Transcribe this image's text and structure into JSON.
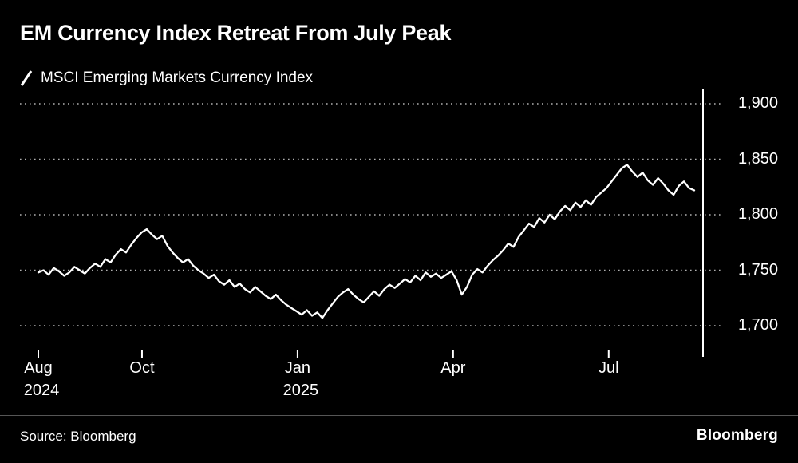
{
  "header": {
    "title": "EM Currency Index Retreat From July Peak",
    "legend": "MSCI Emerging Markets Currency Index"
  },
  "footer": {
    "source": "Source: Bloomberg",
    "brand": "Bloomberg"
  },
  "chart_data": {
    "type": "line",
    "title": "EM Currency Index Retreat From July Peak",
    "series_name": "MSCI Emerging Markets Currency Index",
    "x_unit": "months since Aug 2024",
    "x_range": [
      0,
      12.65
    ],
    "ylim": [
      1700,
      1900
    ],
    "grid": "dotted horizontal",
    "legend_position": "top-left",
    "colors": {
      "background": "#000000",
      "line": "#ffffff",
      "grid_dots": "#b0b0b0",
      "axis": "#ffffff",
      "text": "#ffffff"
    },
    "yticks": [
      {
        "value": 1900,
        "label": "1,900"
      },
      {
        "value": 1850,
        "label": "1,850"
      },
      {
        "value": 1800,
        "label": "1,800"
      },
      {
        "value": 1750,
        "label": "1,750"
      },
      {
        "value": 1700,
        "label": "1,700"
      }
    ],
    "xticks": [
      {
        "t": 0,
        "label": "Aug",
        "sublabel": "2024"
      },
      {
        "t": 2,
        "label": "Oct",
        "sublabel": ""
      },
      {
        "t": 5,
        "label": "Jan",
        "sublabel": "2025"
      },
      {
        "t": 8,
        "label": "Apr",
        "sublabel": ""
      },
      {
        "t": 11,
        "label": "Jul",
        "sublabel": ""
      }
    ],
    "values": [
      1748,
      1750,
      1746,
      1752,
      1749,
      1745,
      1748,
      1753,
      1750,
      1747,
      1752,
      1756,
      1753,
      1760,
      1757,
      1764,
      1769,
      1766,
      1773,
      1779,
      1784,
      1787,
      1782,
      1778,
      1781,
      1772,
      1766,
      1761,
      1757,
      1760,
      1754,
      1750,
      1747,
      1743,
      1746,
      1740,
      1737,
      1741,
      1735,
      1738,
      1733,
      1730,
      1735,
      1731,
      1727,
      1724,
      1728,
      1723,
      1719,
      1716,
      1713,
      1710,
      1714,
      1709,
      1712,
      1707,
      1714,
      1720,
      1726,
      1730,
      1733,
      1728,
      1724,
      1721,
      1726,
      1731,
      1727,
      1733,
      1737,
      1734,
      1738,
      1742,
      1739,
      1745,
      1741,
      1748,
      1744,
      1747,
      1743,
      1746,
      1749,
      1741,
      1728,
      1735,
      1746,
      1751,
      1748,
      1754,
      1759,
      1763,
      1768,
      1774,
      1771,
      1780,
      1786,
      1792,
      1789,
      1797,
      1793,
      1800,
      1796,
      1803,
      1808,
      1804,
      1811,
      1807,
      1813,
      1809,
      1816,
      1820,
      1824,
      1830,
      1836,
      1842,
      1845,
      1839,
      1834,
      1838,
      1831,
      1827,
      1833,
      1828,
      1822,
      1818,
      1826,
      1830,
      1824,
      1822
    ]
  }
}
